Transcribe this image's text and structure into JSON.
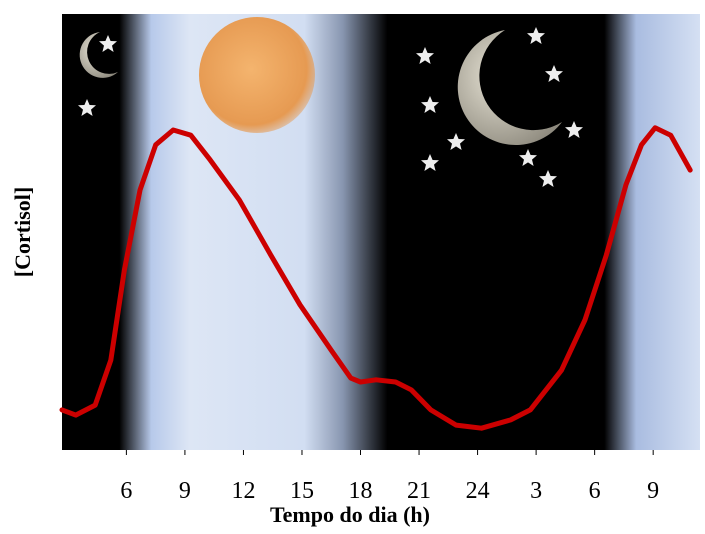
{
  "chart_data": {
    "type": "line",
    "x_label": "Tempo do dia (h)",
    "y_label": "[Cortisol]",
    "xlim": [
      2.7,
      35.4
    ],
    "ylim": [
      0,
      100
    ],
    "xticks": [
      6,
      9,
      12,
      15,
      18,
      21,
      24,
      {
        "value": 27,
        "label": "3"
      },
      {
        "value": 30,
        "label": "6"
      },
      {
        "value": 33,
        "label": "9"
      }
    ],
    "series": [
      {
        "color": "#cc0000",
        "x": [
          2.7,
          3.4,
          4.4,
          5.2,
          5.9,
          6.7,
          7.5,
          8.4,
          9.3,
          10.3,
          11.8,
          13.4,
          14.9,
          16.5,
          17.5,
          18.0,
          18.8,
          19.8,
          20.6,
          21.6,
          22.9,
          24.2,
          25.7,
          26.7,
          28.3,
          29.5,
          30.6,
          31.6,
          32.4,
          33.1,
          33.9,
          34.9
        ],
        "values": [
          9.2,
          8.0,
          10.3,
          20.6,
          41.3,
          59.6,
          70.0,
          73.4,
          72.2,
          66.5,
          57.3,
          44.7,
          33.3,
          22.9,
          16.5,
          15.6,
          16.1,
          15.6,
          13.8,
          9.2,
          5.7,
          5.0,
          6.9,
          9.2,
          18.3,
          29.8,
          44.7,
          60.8,
          70.0,
          73.9,
          72.2,
          64.2
        ]
      }
    ]
  }
}
